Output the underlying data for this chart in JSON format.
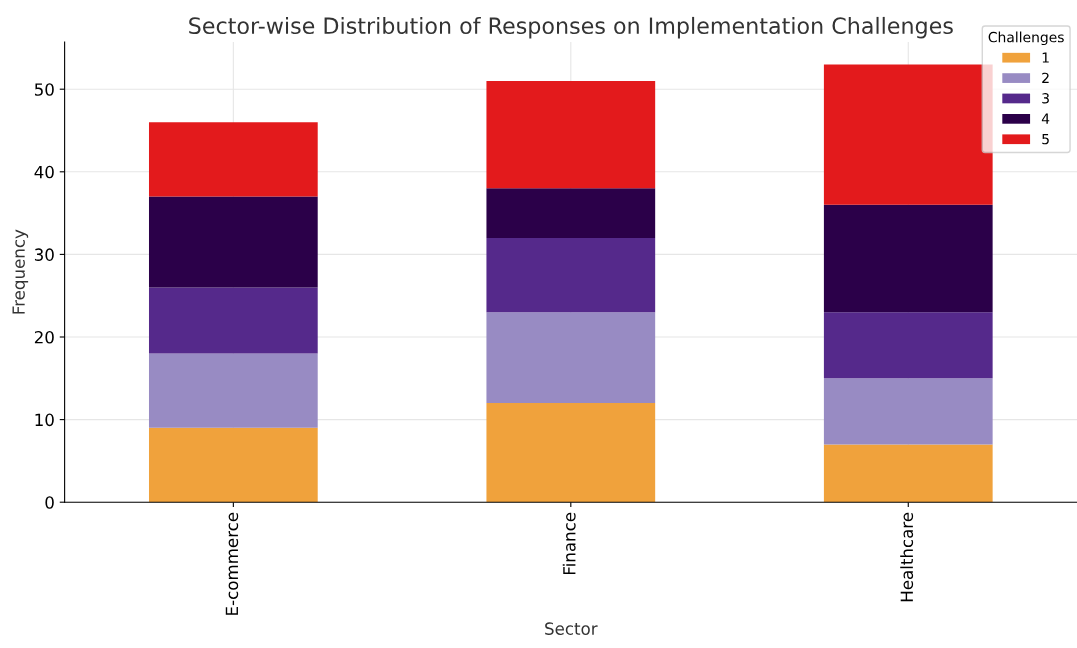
{
  "chart_data": {
    "type": "bar",
    "stacked": true,
    "title": "Sector-wise Distribution of Responses on Implementation Challenges",
    "xlabel": "Sector",
    "ylabel": "Frequency",
    "legend_title": "Challenges",
    "legend": "top right",
    "grid": true,
    "categories": [
      "E-commerce",
      "Finance",
      "Healthcare"
    ],
    "series": [
      {
        "name": "1",
        "color": "#f0a23c",
        "values": [
          9,
          12,
          7
        ]
      },
      {
        "name": "2",
        "color": "#988bc3",
        "values": [
          9,
          11,
          8
        ]
      },
      {
        "name": "3",
        "color": "#55298b",
        "values": [
          8,
          9,
          8
        ]
      },
      {
        "name": "4",
        "color": "#2b0049",
        "values": [
          11,
          6,
          13
        ]
      },
      {
        "name": "5",
        "color": "#e31a1c",
        "values": [
          9,
          13,
          17
        ]
      }
    ],
    "ylim": [
      0,
      55.7
    ],
    "yticks": [
      0,
      10,
      20,
      30,
      40,
      50
    ]
  }
}
